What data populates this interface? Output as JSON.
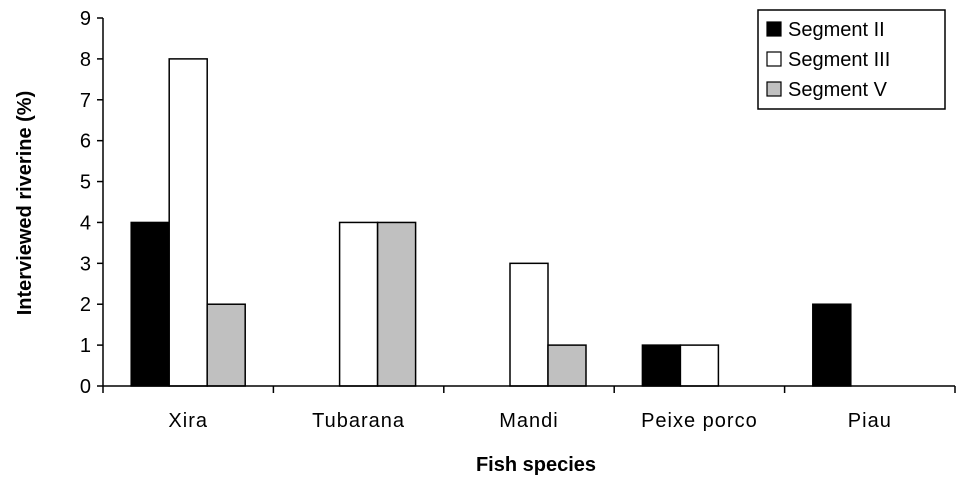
{
  "chart_data": {
    "type": "bar",
    "categories": [
      "Xira",
      "Tubarana",
      "Mandi",
      "Peixe porco",
      "Piau"
    ],
    "series": [
      {
        "name": "Segment II",
        "values": [
          4,
          0,
          0,
          1,
          2
        ],
        "color": "#000000"
      },
      {
        "name": "Segment III",
        "values": [
          8,
          4,
          3,
          1,
          0
        ],
        "color": "#ffffff"
      },
      {
        "name": "Segment V",
        "values": [
          2,
          4,
          1,
          0,
          0
        ],
        "color": "#c0c0c0"
      }
    ],
    "xlabel": "Fish species",
    "ylabel": "Interviewed riverine (%)",
    "ylim": [
      0,
      9
    ],
    "yticks": [
      0,
      1,
      2,
      3,
      4,
      5,
      6,
      7,
      8,
      9
    ],
    "grid": false,
    "legend_position": "top-right"
  }
}
